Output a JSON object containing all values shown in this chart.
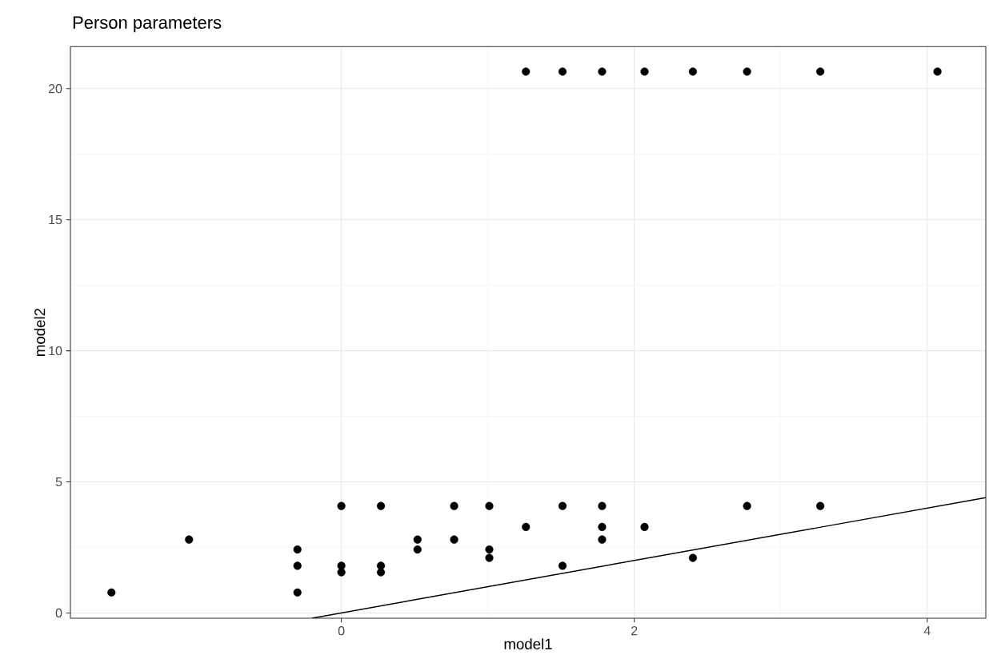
{
  "chart_data": {
    "type": "scatter",
    "title": "Person parameters",
    "xlabel": "model1",
    "ylabel": "model2",
    "xlim": [
      -1.85,
      4.4
    ],
    "ylim": [
      -0.2,
      21.6
    ],
    "xticks": [
      0,
      2,
      4
    ],
    "yticks": [
      0,
      5,
      10,
      15,
      20
    ],
    "grid": true,
    "series": [
      {
        "marker": "circle",
        "color": "#000000",
        "x": [
          -1.57,
          -1.04,
          -0.3,
          -0.3,
          -0.3,
          0,
          0,
          0,
          0.27,
          0.27,
          0.27,
          0.52,
          0.52,
          0.77,
          0.77,
          1.01,
          1.01,
          1.01,
          1.26,
          1.26,
          1.51,
          1.51,
          1.51,
          1.78,
          1.78,
          1.78,
          1.78,
          2.07,
          2.07,
          2.4,
          2.4,
          2.77,
          2.77,
          3.27,
          3.27,
          4.07
        ],
        "values": [
          0.78,
          2.8,
          2.42,
          1.8,
          0.78,
          4.08,
          1.8,
          1.55,
          4.08,
          1.8,
          1.55,
          2.8,
          2.42,
          4.08,
          2.8,
          4.08,
          2.42,
          2.1,
          20.65,
          3.28,
          20.65,
          4.08,
          1.8,
          20.65,
          4.08,
          3.28,
          2.8,
          20.65,
          3.28,
          20.65,
          2.1,
          20.65,
          4.08,
          20.65,
          4.08,
          20.65
        ]
      },
      {
        "type": "line",
        "marker": "none",
        "color": "#000000",
        "x": [
          -0.2,
          4.4
        ],
        "values": [
          -0.2,
          4.4
        ]
      }
    ]
  }
}
